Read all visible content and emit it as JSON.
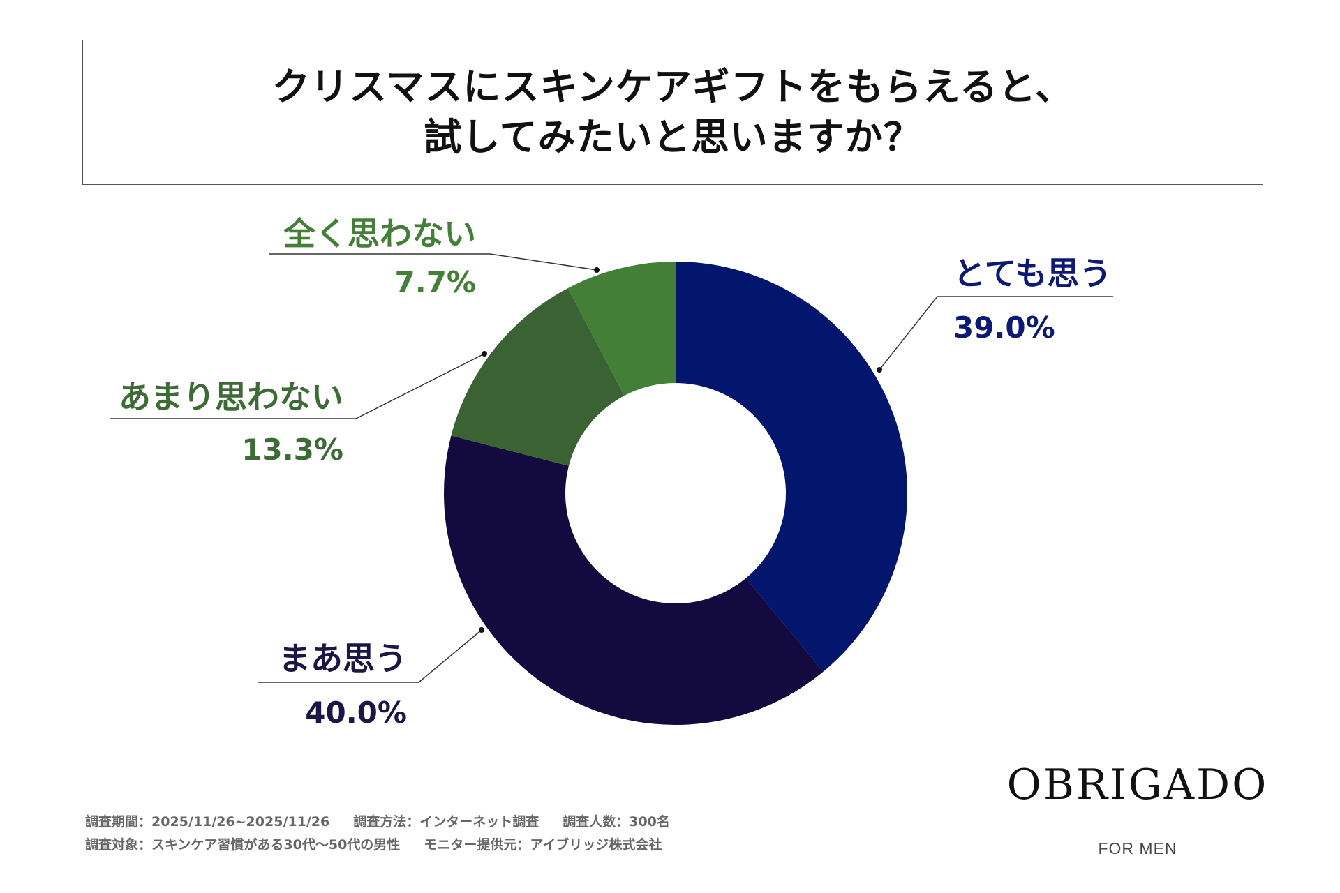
{
  "title": {
    "line1": "クリスマスにスキンケアギフトをもらえると、",
    "line2": "試してみたいと思いますか？"
  },
  "chart_data": {
    "type": "pie",
    "subtype": "donut",
    "title": "クリスマスにスキンケアギフトをもらえると、試してみたいと思いますか？",
    "categories": [
      "とても思う",
      "まあ思う",
      "あまり思わない",
      "全く思わない"
    ],
    "values": [
      39.0,
      40.0,
      13.3,
      7.7
    ],
    "value_labels": [
      "39.0%",
      "40.0%",
      "13.3%",
      "7.7%"
    ],
    "colors": [
      "#03166e",
      "#130a3f",
      "#3b6233",
      "#447f38"
    ],
    "label_colors": [
      "#0c1a73",
      "#1c1647",
      "#3d6b35",
      "#447f38"
    ],
    "start": "12 o'clock",
    "direction": "clockwise"
  },
  "brand": {
    "name": "OBRIGADO",
    "sub": "FOR MEN"
  },
  "footer": {
    "period": "調査期間：2025/11/26~2025/11/26",
    "method": "調査方法：インターネット調査",
    "sample": "調査人数：300名",
    "target": "調査対象：スキンケア習慣がある30代～50代の男性",
    "provider": "モニター提供元：アイブリッジ株式会社"
  }
}
